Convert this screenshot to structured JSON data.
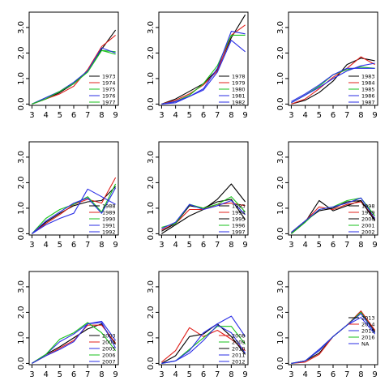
{
  "chart_data": [
    {
      "type": "line",
      "x": [
        3,
        4,
        5,
        6,
        7,
        8,
        9
      ],
      "xlim": [
        2.8,
        9.2
      ],
      "ylim": [
        -0.05,
        3.6
      ],
      "xticks": [
        "3",
        "4",
        "5",
        "6",
        "7",
        "8",
        "9"
      ],
      "yticks": [
        "0.0",
        "1.0",
        "2.0",
        "3.0"
      ],
      "legend": "bottom-right",
      "series": [
        {
          "name": "1973",
          "color": "#000000",
          "values": [
            0.0,
            0.2,
            0.45,
            0.8,
            1.3,
            2.15,
            2.9
          ]
        },
        {
          "name": "1974",
          "color": "#e0201b",
          "values": [
            0.0,
            0.2,
            0.4,
            0.7,
            1.35,
            2.25,
            2.7
          ]
        },
        {
          "name": "1975",
          "color": "#17c21b",
          "values": [
            0.0,
            0.25,
            0.5,
            0.85,
            1.3,
            2.1,
            2.05
          ]
        },
        {
          "name": "1976",
          "color": "#2a2ee6",
          "values": [
            0.0,
            0.25,
            0.5,
            0.85,
            1.3,
            2.2,
            2.0
          ]
        },
        {
          "name": "1977",
          "color": "#17c21b",
          "values": [
            0.0,
            0.2,
            0.5,
            0.8,
            1.25,
            2.1,
            1.95
          ]
        }
      ]
    },
    {
      "type": "line",
      "x": [
        3,
        4,
        5,
        6,
        7,
        8,
        9
      ],
      "xlim": [
        2.8,
        9.2
      ],
      "ylim": [
        -0.05,
        3.6
      ],
      "xticks": [
        "3",
        "4",
        "5",
        "6",
        "7",
        "8",
        "9"
      ],
      "yticks": [
        "0.0",
        "1.0",
        "2.0",
        "3.0"
      ],
      "legend": "bottom-right",
      "series": [
        {
          "name": "1978",
          "color": "#000000",
          "values": [
            0.0,
            0.2,
            0.5,
            0.8,
            1.35,
            2.6,
            3.5
          ]
        },
        {
          "name": "1979",
          "color": "#e0201b",
          "values": [
            0.0,
            0.15,
            0.4,
            0.75,
            1.3,
            2.7,
            3.1
          ]
        },
        {
          "name": "1980",
          "color": "#17c21b",
          "values": [
            0.0,
            0.1,
            0.35,
            0.8,
            1.5,
            2.7,
            2.7
          ]
        },
        {
          "name": "1981",
          "color": "#2a2ee6",
          "values": [
            0.0,
            0.05,
            0.3,
            0.6,
            1.4,
            2.85,
            2.75
          ]
        },
        {
          "name": "1982",
          "color": "#2a2ee6",
          "values": [
            0.0,
            0.1,
            0.3,
            0.55,
            1.25,
            2.5,
            2.05
          ]
        }
      ]
    },
    {
      "type": "line",
      "x": [
        3,
        4,
        5,
        6,
        7,
        8,
        9
      ],
      "xlim": [
        2.8,
        9.2
      ],
      "ylim": [
        -0.05,
        3.6
      ],
      "xticks": [
        "3",
        "4",
        "5",
        "6",
        "7",
        "8",
        "9"
      ],
      "yticks": [
        "0.0",
        "1.0",
        "2.0",
        "3.0"
      ],
      "legend": "bottom-right",
      "series": [
        {
          "name": "1983",
          "color": "#000000",
          "values": [
            0.0,
            0.15,
            0.45,
            0.9,
            1.55,
            1.8,
            1.7
          ]
        },
        {
          "name": "1984",
          "color": "#e0201b",
          "values": [
            0.0,
            0.2,
            0.6,
            1.05,
            1.4,
            1.85,
            1.55
          ]
        },
        {
          "name": "1985",
          "color": "#17c21b",
          "values": [
            0.05,
            0.35,
            0.7,
            1.15,
            1.35,
            1.45,
            1.4
          ]
        },
        {
          "name": "1986",
          "color": "#2a2ee6",
          "values": [
            0.05,
            0.35,
            0.65,
            1.0,
            1.3,
            1.5,
            1.6
          ]
        },
        {
          "name": "1987",
          "color": "#2a2ee6",
          "values": [
            0.1,
            0.4,
            0.75,
            1.15,
            1.4,
            1.4,
            1.4
          ]
        }
      ]
    },
    {
      "type": "line",
      "x": [
        3,
        4,
        5,
        6,
        7,
        8,
        9
      ],
      "xlim": [
        2.8,
        9.2
      ],
      "ylim": [
        -0.05,
        3.6
      ],
      "xticks": [
        "3",
        "4",
        "5",
        "6",
        "7",
        "8",
        "9"
      ],
      "yticks": [
        "0.0",
        "1.0",
        "2.0",
        "3.0"
      ],
      "legend": "bottom-right",
      "series": [
        {
          "name": "1988",
          "color": "#000000",
          "values": [
            0.0,
            0.45,
            0.8,
            1.1,
            1.25,
            1.3,
            1.85
          ]
        },
        {
          "name": "1989",
          "color": "#e0201b",
          "values": [
            0.0,
            0.4,
            0.75,
            1.15,
            1.35,
            1.2,
            2.2
          ]
        },
        {
          "name": "1990",
          "color": "#17c21b",
          "values": [
            0.0,
            0.6,
            0.95,
            1.15,
            1.45,
            0.85,
            1.95
          ]
        },
        {
          "name": "1991",
          "color": "#2a2ee6",
          "values": [
            0.0,
            0.5,
            0.85,
            1.2,
            1.4,
            0.8,
            1.8
          ]
        },
        {
          "name": "1992",
          "color": "#2a2ee6",
          "values": [
            0.0,
            0.35,
            0.6,
            0.8,
            1.75,
            1.45,
            1.15
          ]
        }
      ]
    },
    {
      "type": "line",
      "x": [
        3,
        4,
        5,
        6,
        7,
        8,
        9
      ],
      "xlim": [
        2.8,
        9.2
      ],
      "ylim": [
        -0.05,
        3.6
      ],
      "xticks": [
        "3",
        "4",
        "5",
        "6",
        "7",
        "8",
        "9"
      ],
      "yticks": [
        "0.0",
        "1.0",
        "2.0",
        "3.0"
      ],
      "legend": "bottom-right",
      "series": [
        {
          "name": "1993",
          "color": "#000000",
          "values": [
            0.0,
            0.35,
            0.7,
            0.95,
            1.35,
            1.95,
            1.25
          ]
        },
        {
          "name": "1994",
          "color": "#e0201b",
          "values": [
            0.15,
            0.4,
            0.95,
            0.95,
            1.15,
            1.2,
            1.1
          ]
        },
        {
          "name": "1995",
          "color": "#000000",
          "values": [
            0.1,
            0.4,
            1.1,
            1.0,
            1.25,
            1.35,
            0.55
          ]
        },
        {
          "name": "1996",
          "color": "#17c21b",
          "values": [
            0.25,
            0.4,
            1.15,
            1.0,
            1.15,
            1.45,
            0.85
          ]
        },
        {
          "name": "1997",
          "color": "#2a2ee6",
          "values": [
            0.2,
            0.45,
            1.15,
            0.95,
            1.1,
            1.3,
            0.75
          ]
        }
      ]
    },
    {
      "type": "line",
      "x": [
        3,
        4,
        5,
        6,
        7,
        8,
        9
      ],
      "xlim": [
        2.8,
        9.2
      ],
      "ylim": [
        -0.05,
        3.6
      ],
      "xticks": [
        "3",
        "4",
        "5",
        "6",
        "7",
        "8",
        "9"
      ],
      "yticks": [
        "0.0",
        "1.0",
        "2.0",
        "3.0"
      ],
      "legend": "bottom-right",
      "series": [
        {
          "name": "1998",
          "color": "#000000",
          "values": [
            0.0,
            0.45,
            1.3,
            0.9,
            1.1,
            1.3,
            0.55
          ]
        },
        {
          "name": "1999",
          "color": "#e0201b",
          "values": [
            0.05,
            0.5,
            1.05,
            0.95,
            1.15,
            1.25,
            0.6
          ]
        },
        {
          "name": "2000",
          "color": "#000000",
          "values": [
            0.05,
            0.5,
            0.9,
            1.0,
            1.25,
            1.3,
            0.5
          ]
        },
        {
          "name": "2001",
          "color": "#17c21b",
          "values": [
            0.0,
            0.45,
            0.95,
            1.05,
            1.3,
            1.4,
            0.7
          ]
        },
        {
          "name": "2002",
          "color": "#2a2ee6",
          "values": [
            0.05,
            0.5,
            0.95,
            1.05,
            1.2,
            1.4,
            0.6
          ]
        }
      ]
    },
    {
      "type": "line",
      "x": [
        3,
        4,
        5,
        6,
        7,
        8,
        9
      ],
      "xlim": [
        2.8,
        9.2
      ],
      "ylim": [
        -0.05,
        3.6
      ],
      "xticks": [
        "3",
        "4",
        "5",
        "6",
        "7",
        "8",
        "9"
      ],
      "yticks": [
        "0.0",
        "1.0",
        "2.0",
        "3.0"
      ],
      "legend": "bottom-right",
      "series": [
        {
          "name": "2003",
          "color": "#000000",
          "values": [
            0.0,
            0.35,
            0.65,
            1.0,
            1.35,
            1.55,
            0.75
          ]
        },
        {
          "name": "2004",
          "color": "#e0201b",
          "values": [
            0.0,
            0.3,
            0.6,
            0.9,
            1.5,
            1.5,
            0.8
          ]
        },
        {
          "name": "2005",
          "color": "#2a2ee6",
          "values": [
            0.0,
            0.35,
            0.85,
            1.15,
            1.55,
            1.65,
            0.9
          ]
        },
        {
          "name": "2006",
          "color": "#17c21b",
          "values": [
            0.0,
            0.35,
            0.95,
            1.2,
            1.6,
            1.2,
            0.5
          ]
        },
        {
          "name": "2007",
          "color": "#2a2ee6",
          "values": [
            0.0,
            0.3,
            0.55,
            0.85,
            1.55,
            1.6,
            0.6
          ]
        }
      ]
    },
    {
      "type": "line",
      "x": [
        3,
        4,
        5,
        6,
        7,
        8,
        9
      ],
      "xlim": [
        2.8,
        9.2
      ],
      "ylim": [
        -0.05,
        3.6
      ],
      "xticks": [
        "3",
        "4",
        "5",
        "6",
        "7",
        "8",
        "9"
      ],
      "yticks": [
        "0.0",
        "1.0",
        "2.0",
        "3.0"
      ],
      "legend": "bottom-right",
      "series": [
        {
          "name": "2008",
          "color": "#e0201b",
          "values": [
            0.05,
            0.5,
            1.4,
            1.05,
            1.3,
            0.95,
            0.5
          ]
        },
        {
          "name": "2009",
          "color": "#17c21b",
          "values": [
            0.0,
            0.1,
            0.55,
            1.0,
            1.45,
            1.45,
            0.75
          ]
        },
        {
          "name": "2010",
          "color": "#000000",
          "values": [
            0.0,
            0.3,
            1.05,
            1.15,
            1.55,
            1.05,
            0.35
          ]
        },
        {
          "name": "2011",
          "color": "#2a2ee6",
          "values": [
            0.0,
            0.1,
            0.5,
            1.2,
            1.55,
            1.85,
            1.05
          ]
        },
        {
          "name": "2012",
          "color": "#2a2ee6",
          "values": [
            0.0,
            0.1,
            0.4,
            0.9,
            1.5,
            1.2,
            0.4
          ]
        }
      ]
    },
    {
      "type": "line",
      "x": [
        3,
        4,
        5,
        6,
        7,
        8,
        9
      ],
      "xlim": [
        2.8,
        9.2
      ],
      "ylim": [
        -0.05,
        3.6
      ],
      "xticks": [
        "3",
        "4",
        "5",
        "6",
        "7",
        "8",
        "9"
      ],
      "yticks": [
        "0.0",
        "1.0",
        "2.0",
        "3.0"
      ],
      "legend": "top-right",
      "series": [
        {
          "name": "2013",
          "color": "#000000",
          "values": [
            0.0,
            0.1,
            0.4,
            1.05,
            1.5,
            2.05,
            1.25
          ]
        },
        {
          "name": "2014",
          "color": "#e0201b",
          "values": [
            0.0,
            0.05,
            0.35,
            1.05,
            1.5,
            2.05,
            1.3
          ]
        },
        {
          "name": "2015",
          "color": "#2a2ee6",
          "values": [
            0.0,
            0.1,
            0.55,
            1.05,
            1.5,
            1.8,
            1.15
          ]
        },
        {
          "name": "2016",
          "color": "#17c21b",
          "values": [
            0.0,
            0.1,
            0.5,
            1.05,
            1.5,
            2.0,
            1.2
          ]
        },
        {
          "name": "NA",
          "color": "#2a2ee6",
          "values": [
            0.0,
            0.1,
            0.5,
            1.05,
            1.5,
            1.95,
            1.2
          ]
        }
      ]
    }
  ]
}
